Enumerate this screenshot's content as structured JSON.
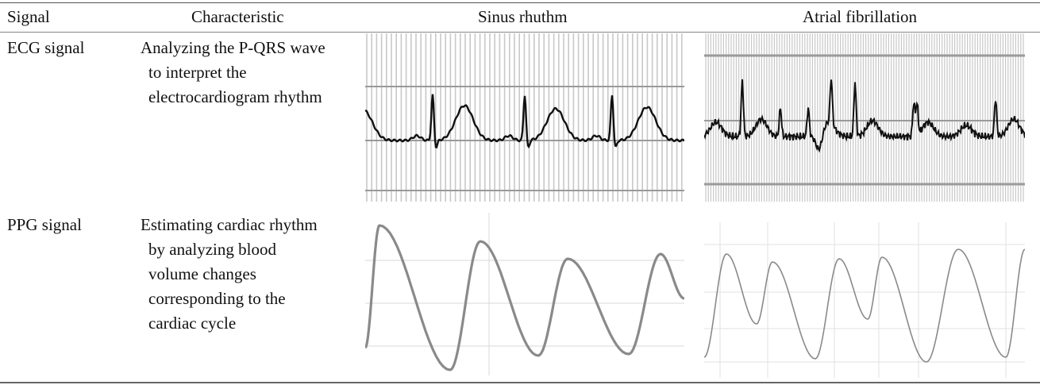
{
  "table": {
    "headers": [
      "Signal",
      "Characteristic",
      "Sinus rhuthm",
      "Atrial fibrillation"
    ],
    "rows": [
      {
        "signal": "ECG signal",
        "characteristic_lines": [
          "Analyzing the P-QRS wave",
          "to interpret the",
          "electrocardiogram rhythm"
        ],
        "sinus_image": "ECG waveform in sinus rhythm on grid paper",
        "af_image": "ECG waveform in atrial fibrillation on grid paper"
      },
      {
        "signal": "PPG signal",
        "characteristic_lines": [
          "Estimating cardiac rhythm",
          "by analyzing blood",
          "volume changes",
          "corresponding to the",
          "cardiac cycle"
        ],
        "sinus_image": "Regular PPG pulse waveform",
        "af_image": "Irregular PPG pulse waveform"
      }
    ]
  },
  "colors": {
    "trace_ecg": "#111111",
    "trace_ppg": "#8a8a8a",
    "grid_fine": "#c8c8c8",
    "grid_major": "#9a9a9a"
  }
}
